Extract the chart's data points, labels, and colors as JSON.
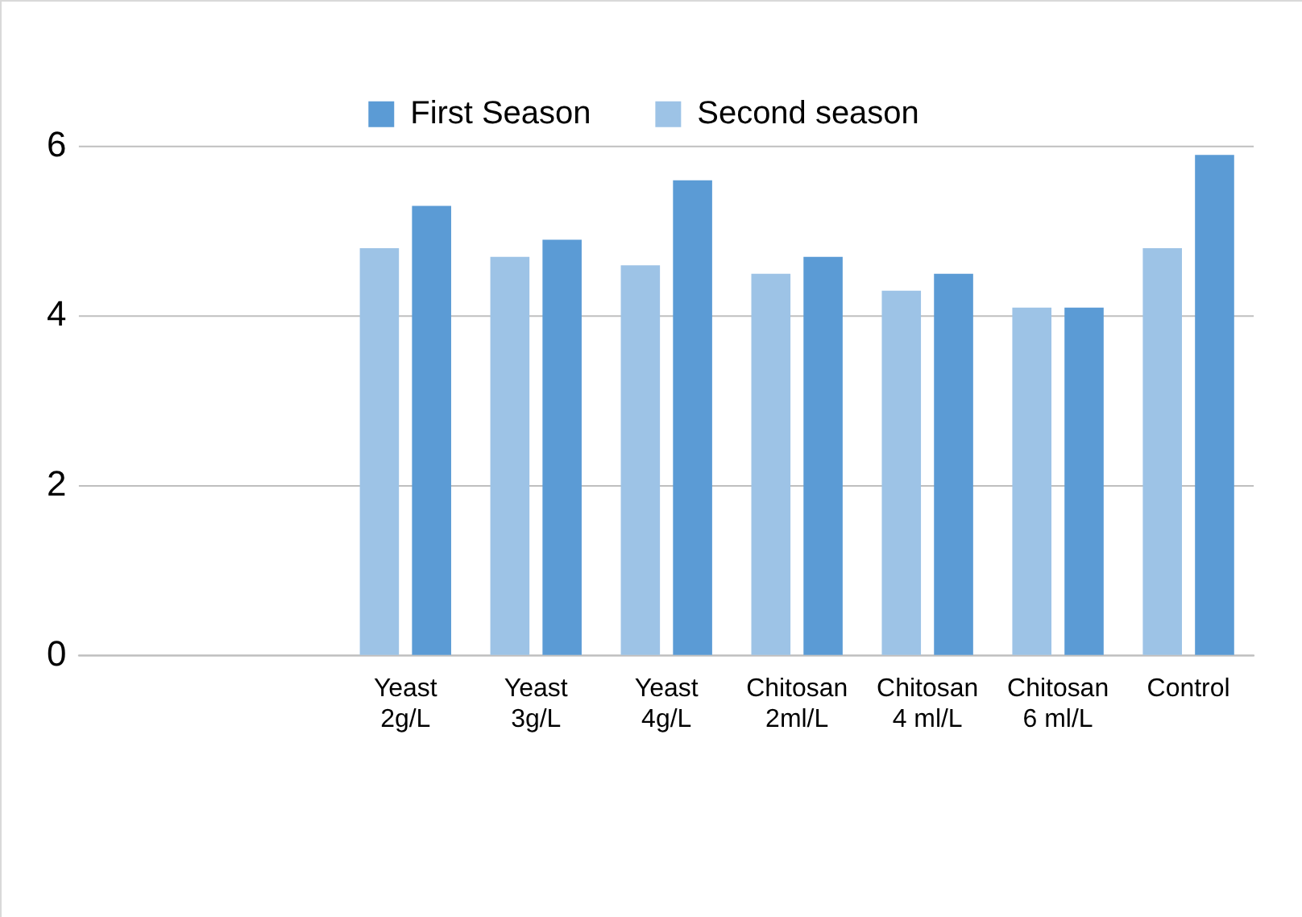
{
  "chart_data": {
    "type": "bar",
    "categories": [
      null,
      null,
      "Yeast\n2g/L",
      "Yeast\n3g/L",
      "Yeast\n4g/L",
      "Chitosan\n2ml/L",
      "Chitosan\n4 ml/L",
      "Chitosan\n6 ml/L",
      "Control"
    ],
    "series": [
      {
        "name": "Second season",
        "color": "#9dc3e6",
        "values": [
          null,
          null,
          4.8,
          4.7,
          4.6,
          4.5,
          4.3,
          4.1,
          4.8
        ]
      },
      {
        "name": "First Season",
        "color": "#5b9bd5",
        "values": [
          null,
          null,
          5.3,
          4.9,
          5.6,
          4.7,
          4.5,
          4.1,
          5.9
        ]
      }
    ],
    "ylim": [
      0,
      6
    ],
    "yticks": [
      0,
      2,
      4,
      6
    ],
    "grid": "y",
    "legend": "top"
  }
}
